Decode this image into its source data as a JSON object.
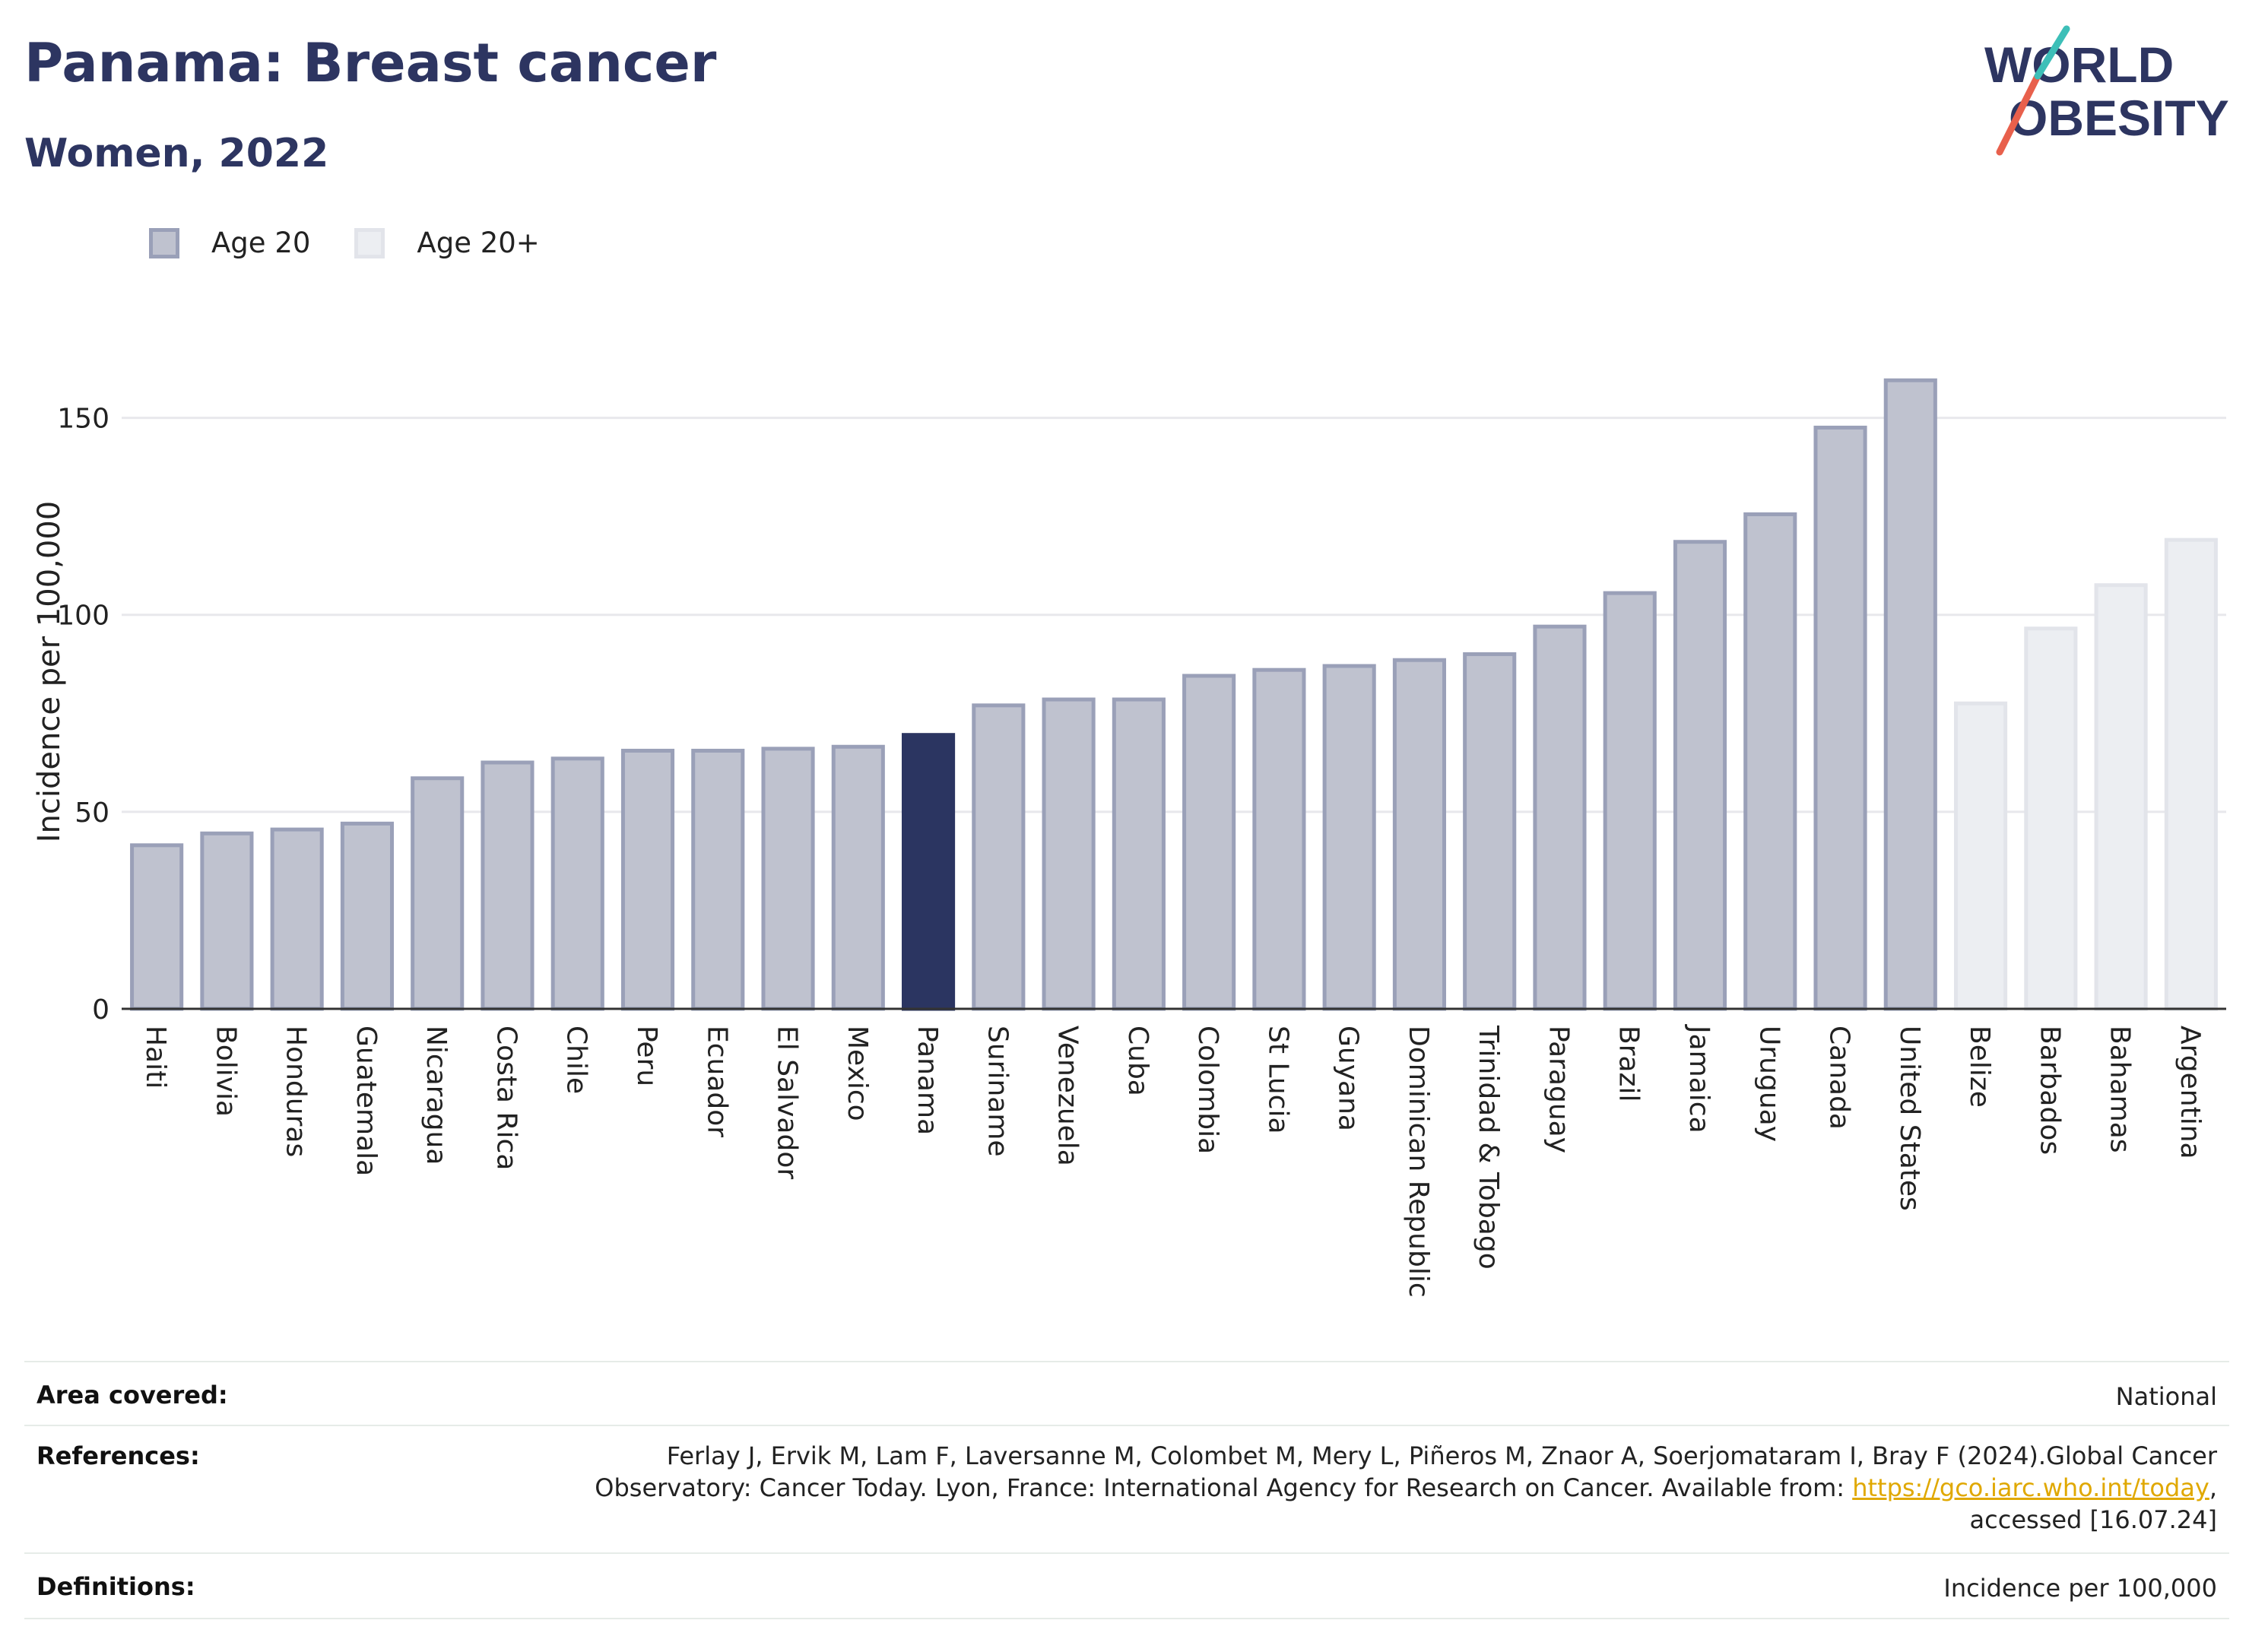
{
  "header": {
    "title": "Panama: Breast cancer",
    "subtitle": "Women, 2022"
  },
  "logo": {
    "line1": "WORLD",
    "line2": "OBESITY",
    "colors": [
      "#2d3561",
      "#e8604c",
      "#3dbfb8"
    ]
  },
  "colors": {
    "highlight": "#2b3561",
    "age20_fill": "#bfc2cf",
    "age20_border": "#9aa0b8",
    "age20plus_fill": "#eceef2",
    "age20plus_border": "#e2e4ea",
    "text": "#2d3561"
  },
  "legend": [
    {
      "label": "Age 20",
      "color": "#bfc2cf",
      "border": "#9aa0b8"
    },
    {
      "label": "Age 20+",
      "color": "#eceef2",
      "border": "#e2e4ea"
    }
  ],
  "chart_data": {
    "type": "bar",
    "ylabel": "Incidence per 100,000",
    "ylim": [
      0,
      175
    ],
    "yticks": [
      0,
      50,
      100,
      150
    ],
    "grid": true,
    "categories": [
      "Haiti",
      "Bolivia",
      "Honduras",
      "Guatemala",
      "Nicaragua",
      "Costa Rica",
      "Chile",
      "Peru",
      "Ecuador",
      "El Salvador",
      "Mexico",
      "Panama",
      "Suriname",
      "Venezuela",
      "Cuba",
      "Colombia",
      "St Lucia",
      "Guyana",
      "Dominican Republic",
      "Trinidad & Tobago",
      "Paraguay",
      "Brazil",
      "Jamaica",
      "Uruguay",
      "Canada",
      "United States",
      "Belize",
      "Barbados",
      "Bahamas",
      "Argentina"
    ],
    "values": [
      42,
      45,
      46,
      47.5,
      59,
      63,
      64,
      66,
      66,
      66.5,
      67,
      70,
      77.5,
      79,
      79,
      85,
      86.5,
      87.5,
      89,
      90.5,
      97.5,
      106,
      119,
      126,
      148,
      160,
      78,
      97,
      108,
      119.5
    ],
    "groups": [
      "Age 20",
      "Age 20",
      "Age 20",
      "Age 20",
      "Age 20",
      "Age 20",
      "Age 20",
      "Age 20",
      "Age 20",
      "Age 20",
      "Age 20",
      "Age 20",
      "Age 20",
      "Age 20",
      "Age 20",
      "Age 20",
      "Age 20",
      "Age 20",
      "Age 20",
      "Age 20",
      "Age 20",
      "Age 20",
      "Age 20",
      "Age 20",
      "Age 20",
      "Age 20",
      "Age 20+",
      "Age 20+",
      "Age 20+",
      "Age 20+"
    ],
    "highlight": "Panama"
  },
  "footer": {
    "area_label": "Area covered:",
    "area_value": "National",
    "references_label": "References:",
    "references_line1": "Ferlay J, Ervik M, Lam F, Laversanne M, Colombet M, Mery L, Piñeros M, Znaor A, Soerjomataram I, Bray F (2024).Global Cancer",
    "references_line2": "Observatory: Cancer Today. Lyon, France: International Agency for Research on Cancer. Available from:",
    "references_link": "https://gco.iarc.who.int/today",
    "references_line3": "accessed [16.07.24]",
    "definitions_label": "Definitions:",
    "definitions_value": "Incidence per 100,000"
  }
}
